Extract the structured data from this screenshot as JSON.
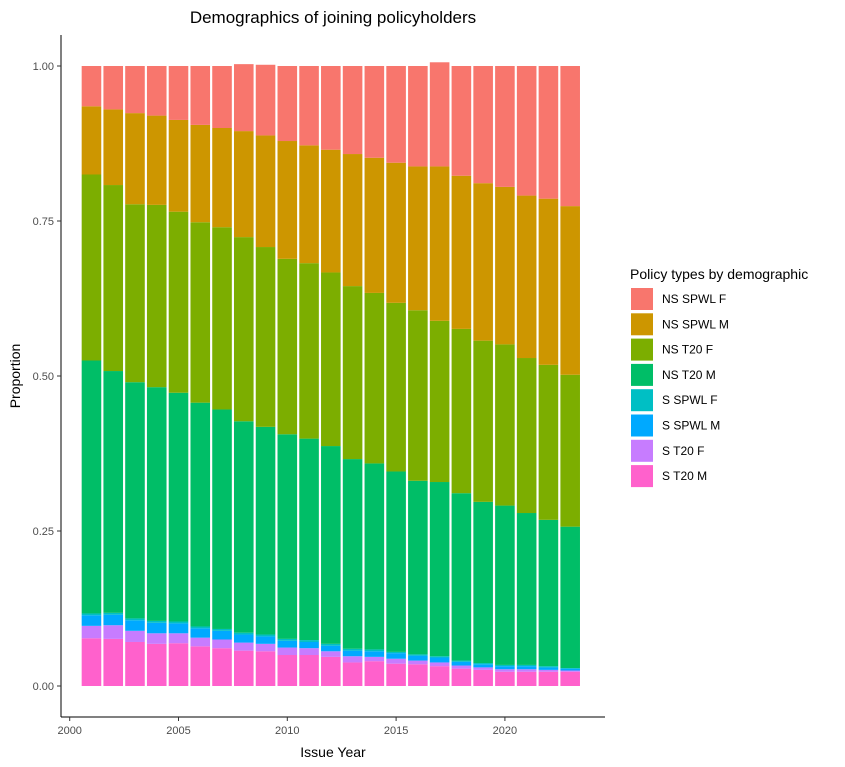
{
  "chart_data": {
    "type": "bar",
    "stacked": true,
    "title": "Demographics of joining policyholders",
    "xlabel": "Issue Year",
    "ylabel": "Proportion",
    "xlim": [
      1999.6,
      2024.6
    ],
    "ylim": [
      -0.05,
      1.05
    ],
    "x_ticks": [
      2000,
      2005,
      2010,
      2015,
      2020
    ],
    "y_ticks": [
      0,
      0.25,
      0.5,
      0.75,
      1
    ],
    "x_tick_labels": [
      "2000",
      "2005",
      "2010",
      "2015",
      "2020"
    ],
    "y_tick_labels": [
      "0.00",
      "0.25",
      "0.50",
      "0.75",
      "1.00"
    ],
    "legend_title": "Policy types by demographic",
    "legend_position": "right",
    "grid": false,
    "x": [
      2001,
      2002,
      2003,
      2004,
      2005,
      2006,
      2007,
      2008,
      2009,
      2010,
      2011,
      2012,
      2013,
      2014,
      2015,
      2016,
      2017,
      2018,
      2019,
      2020,
      2021,
      2022,
      2023
    ],
    "series": [
      {
        "name": "NS SPWL F",
        "color": "#F8766D",
        "values": [
          0.065,
          0.07,
          0.076,
          0.08,
          0.087,
          0.095,
          0.1,
          0.108,
          0.114,
          0.121,
          0.128,
          0.135,
          0.142,
          0.148,
          0.156,
          0.162,
          0.168,
          0.177,
          0.189,
          0.195,
          0.209,
          0.214,
          0.226
        ]
      },
      {
        "name": "NS SPWL M",
        "color": "#CD9600",
        "values": [
          0.11,
          0.122,
          0.147,
          0.144,
          0.148,
          0.157,
          0.16,
          0.171,
          0.18,
          0.19,
          0.19,
          0.198,
          0.213,
          0.218,
          0.226,
          0.232,
          0.249,
          0.247,
          0.254,
          0.254,
          0.262,
          0.268,
          0.272
        ]
      },
      {
        "name": "NS T20 F",
        "color": "#7CAE00",
        "values": [
          0.3,
          0.3,
          0.287,
          0.294,
          0.292,
          0.291,
          0.294,
          0.297,
          0.29,
          0.283,
          0.283,
          0.28,
          0.279,
          0.275,
          0.272,
          0.275,
          0.26,
          0.265,
          0.26,
          0.26,
          0.25,
          0.25,
          0.245
        ]
      },
      {
        "name": "NS T20 M",
        "color": "#00BE67",
        "values": [
          0.408,
          0.39,
          0.381,
          0.377,
          0.369,
          0.361,
          0.354,
          0.341,
          0.335,
          0.33,
          0.325,
          0.319,
          0.306,
          0.3,
          0.291,
          0.28,
          0.281,
          0.27,
          0.26,
          0.257,
          0.245,
          0.236,
          0.228
        ]
      },
      {
        "name": "S SPWL F",
        "color": "#00BFC4",
        "values": [
          0.003,
          0.003,
          0.003,
          0.003,
          0.003,
          0.003,
          0.003,
          0.003,
          0.003,
          0.003,
          0.003,
          0.003,
          0.003,
          0.003,
          0.002,
          0.002,
          0.002,
          0.002,
          0.002,
          0.002,
          0.002,
          0.002,
          0.001
        ]
      },
      {
        "name": "S SPWL M",
        "color": "#00A9FF",
        "values": [
          0.017,
          0.017,
          0.017,
          0.017,
          0.016,
          0.015,
          0.014,
          0.013,
          0.012,
          0.011,
          0.01,
          0.009,
          0.009,
          0.009,
          0.009,
          0.008,
          0.008,
          0.006,
          0.005,
          0.005,
          0.005,
          0.004,
          0.003
        ]
      },
      {
        "name": "S T20 F",
        "color": "#C77CFF",
        "values": [
          0.02,
          0.022,
          0.018,
          0.017,
          0.016,
          0.014,
          0.014,
          0.013,
          0.012,
          0.012,
          0.011,
          0.009,
          0.01,
          0.007,
          0.008,
          0.006,
          0.006,
          0.005,
          0.004,
          0.004,
          0.004,
          0.003,
          0.002
        ]
      },
      {
        "name": "S T20 M",
        "color": "#FF61CC",
        "values": [
          0.077,
          0.076,
          0.071,
          0.068,
          0.069,
          0.064,
          0.061,
          0.057,
          0.056,
          0.05,
          0.05,
          0.047,
          0.038,
          0.04,
          0.036,
          0.035,
          0.032,
          0.028,
          0.026,
          0.023,
          0.023,
          0.023,
          0.023
        ]
      }
    ]
  }
}
